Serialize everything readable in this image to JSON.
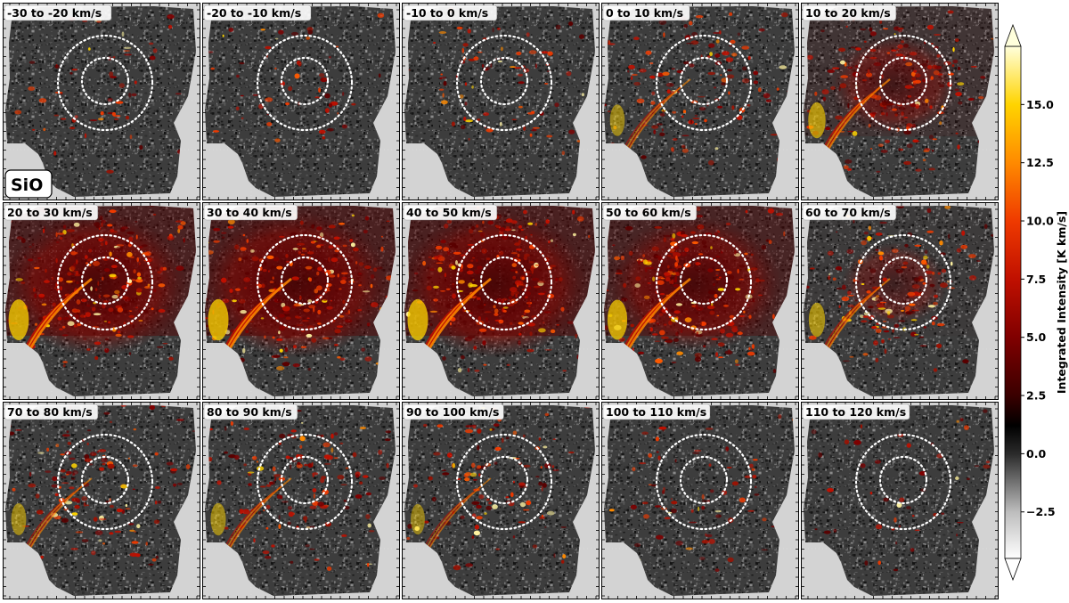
{
  "figure": {
    "molecule_label": "SiO",
    "panels": [
      {
        "label": "-30 to -20 km/s",
        "emission": 0.12
      },
      {
        "label": "-20 to -10 km/s",
        "emission": 0.1
      },
      {
        "label": "-10 to 0 km/s",
        "emission": 0.22
      },
      {
        "label": "0 to 10 km/s",
        "emission": 0.38
      },
      {
        "label": "10 to 20 km/s",
        "emission": 0.62
      },
      {
        "label": "20 to 30 km/s",
        "emission": 0.9
      },
      {
        "label": "30 to 40 km/s",
        "emission": 0.92
      },
      {
        "label": "40 to 50 km/s",
        "emission": 0.92
      },
      {
        "label": "50 to 60 km/s",
        "emission": 0.85
      },
      {
        "label": "60 to 70 km/s",
        "emission": 0.52
      },
      {
        "label": "70 to 80 km/s",
        "emission": 0.4
      },
      {
        "label": "80 to 90 km/s",
        "emission": 0.42
      },
      {
        "label": "90 to 100 km/s",
        "emission": 0.32
      },
      {
        "label": "100 to 110 km/s",
        "emission": 0.18
      },
      {
        "label": "110 to 120 km/s",
        "emission": 0.08
      }
    ]
  },
  "colorbar": {
    "label": "Integrated Intensity [K km/s]",
    "range": [
      -4.5,
      17.5
    ],
    "ticks": [
      {
        "value": 15.0,
        "label": "15.0"
      },
      {
        "value": 12.5,
        "label": "12.5"
      },
      {
        "value": 10.0,
        "label": "10.0"
      },
      {
        "value": 7.5,
        "label": "7.5"
      },
      {
        "value": 5.0,
        "label": "5.0"
      },
      {
        "value": 2.5,
        "label": "2.5"
      },
      {
        "value": 0.0,
        "label": "0.0"
      },
      {
        "value": -2.5,
        "label": "−2.5"
      }
    ],
    "stops": [
      {
        "value": -4.5,
        "color": "#ffffff"
      },
      {
        "value": -2.5,
        "color": "#bdbdbd"
      },
      {
        "value": 0.0,
        "color": "#2a2a2a"
      },
      {
        "value": 1.2,
        "color": "#000000"
      },
      {
        "value": 2.5,
        "color": "#3a0000"
      },
      {
        "value": 5.0,
        "color": "#800000"
      },
      {
        "value": 7.5,
        "color": "#c01000"
      },
      {
        "value": 10.0,
        "color": "#ef3a00"
      },
      {
        "value": 12.5,
        "color": "#ff8a00"
      },
      {
        "value": 15.0,
        "color": "#ffd400"
      },
      {
        "value": 17.5,
        "color": "#ffffdc"
      }
    ]
  },
  "colors": {
    "background_mask": "#d3d3d3",
    "noise_dark": "#1c1c1c",
    "noise_mid": "#565656",
    "noise_light": "#8a8a8a",
    "circle": "#ffffff",
    "label_box": "#ffffff"
  }
}
